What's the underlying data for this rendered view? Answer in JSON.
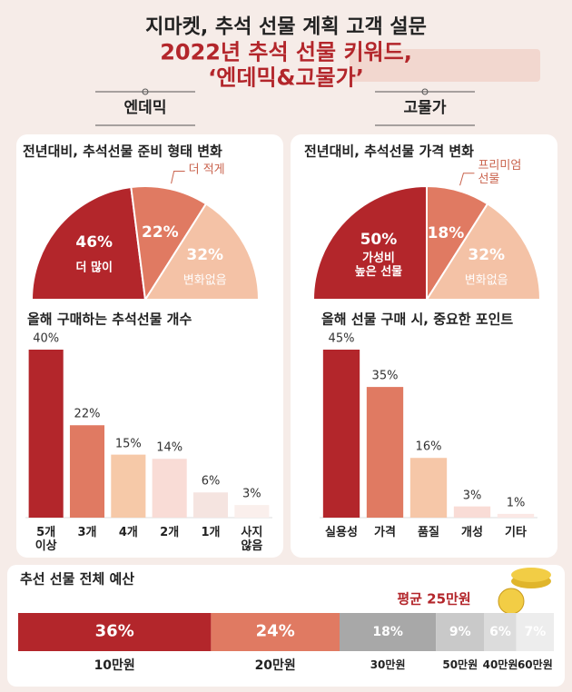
{
  "header": {
    "title": "지마켓, 추석 선물 계획 고객 설문",
    "subtitle": "2022년 추석 선물 키워드, ‘엔데믹&고물가’",
    "left_label": "엔데믹",
    "right_label": "고물가"
  },
  "chart_data": [
    {
      "type": "pie",
      "title": "전년대비, 추석선물 준비 형태 변화",
      "categories": [
        "더 많이",
        "더 적게",
        "변화없음"
      ],
      "values": [
        46,
        22,
        32
      ],
      "value_labels": [
        "46%",
        "22%",
        "32%"
      ],
      "colors": [
        "#b3262b",
        "#e07a62",
        "#f4c2a6"
      ]
    },
    {
      "type": "pie",
      "title": "전년대비, 추석선물 가격 변화",
      "categories": [
        "가성비\n높은 선물",
        "프리미엄\n선물",
        "변화없음"
      ],
      "values": [
        50,
        18,
        32
      ],
      "value_labels": [
        "50%",
        "18%",
        "32%"
      ],
      "colors": [
        "#b3262b",
        "#e07a62",
        "#f4c2a6"
      ]
    },
    {
      "type": "bar",
      "title": "올해 구매하는 추석선물 개수",
      "categories": [
        "5개\n이상",
        "3개",
        "4개",
        "2개",
        "1개",
        "사지\n않음"
      ],
      "values": [
        40,
        22,
        15,
        14,
        6,
        3
      ],
      "value_labels": [
        "40%",
        "22%",
        "15%",
        "14%",
        "6%",
        "3%"
      ],
      "colors": [
        "#b3262b",
        "#e07a62",
        "#f6c9a8",
        "#f9dcd6",
        "#f5e4e0",
        "#faefec"
      ]
    },
    {
      "type": "bar",
      "title": "올해 선물 구매 시, 중요한 포인트",
      "categories": [
        "실용성",
        "가격",
        "품질",
        "개성",
        "기타"
      ],
      "values": [
        45,
        35,
        16,
        3,
        1
      ],
      "value_labels": [
        "45%",
        "35%",
        "16%",
        "3%",
        "1%"
      ],
      "colors": [
        "#b3262b",
        "#e07a62",
        "#f6c7a8",
        "#f9dcd6",
        "#fbe8e5"
      ]
    },
    {
      "type": "stacked-bar",
      "title": "추선 선물 전체 예산",
      "annotation": "평균 25만원",
      "categories": [
        "10만원",
        "20만원",
        "30만원",
        "50만원",
        "40만원",
        "60만원"
      ],
      "values": [
        36,
        24,
        18,
        9,
        6,
        7
      ],
      "value_labels": [
        "36%",
        "24%",
        "18%",
        "9%",
        "6%",
        "7%"
      ],
      "colors": [
        "#b3262b",
        "#e07a62",
        "#a8a8a8",
        "#c9c9c9",
        "#dcdcdc",
        "#ededed"
      ]
    }
  ]
}
